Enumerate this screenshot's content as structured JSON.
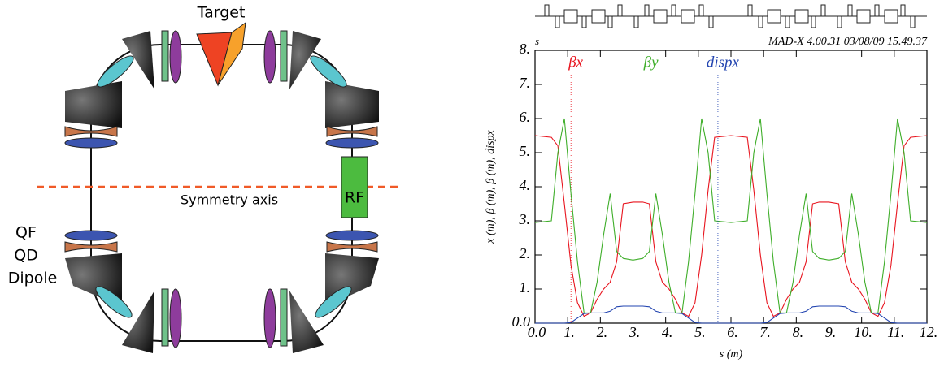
{
  "diagram": {
    "labels": {
      "target": "Target",
      "axis": "Symmetry axis",
      "rf": "RF",
      "qf": "QF",
      "qd": "QD",
      "dipole": "Dipole"
    }
  },
  "chart_data": {
    "type": "line",
    "corner_label": "s",
    "header": "MAD-X 4.00.31   03/08/09 15.49.37",
    "xlabel": "s (m)",
    "ylabel": "x (m), β (m), β (m), dispx",
    "xlim": [
      0,
      12
    ],
    "ylim": [
      0,
      8
    ],
    "xticks": [
      {
        "value": 0,
        "label": "0.0"
      },
      {
        "value": 1,
        "label": "1."
      },
      {
        "value": 2,
        "label": "2."
      },
      {
        "value": 3,
        "label": "3."
      },
      {
        "value": 4,
        "label": "4."
      },
      {
        "value": 5,
        "label": "5."
      },
      {
        "value": 6,
        "label": "6."
      },
      {
        "value": 7,
        "label": "7."
      },
      {
        "value": 8,
        "label": "8."
      },
      {
        "value": 9,
        "label": "9."
      },
      {
        "value": 10,
        "label": "10."
      },
      {
        "value": 11,
        "label": "11."
      },
      {
        "value": 12,
        "label": "12."
      }
    ],
    "yticks": [
      {
        "value": 0,
        "label": "0.0"
      },
      {
        "value": 1,
        "label": "1."
      },
      {
        "value": 2,
        "label": "2."
      },
      {
        "value": 3,
        "label": "3."
      },
      {
        "value": 4,
        "label": "4."
      },
      {
        "value": 5,
        "label": "5."
      },
      {
        "value": 6,
        "label": "6."
      },
      {
        "value": 7,
        "label": "7."
      },
      {
        "value": 8,
        "label": "8."
      }
    ],
    "x": [
      0,
      0.5,
      0.7,
      0.9,
      1.1,
      1.3,
      1.5,
      1.7,
      1.9,
      2.1,
      2.3,
      2.5,
      2.7,
      3.0,
      3.3,
      3.5,
      3.7,
      3.9,
      4.1,
      4.3,
      4.5,
      4.7,
      4.9,
      5.1,
      5.3,
      5.5,
      6.0,
      6.5,
      6.7,
      6.9,
      7.1,
      7.3,
      7.5,
      7.7,
      7.9,
      8.1,
      8.3,
      8.5,
      8.7,
      9.0,
      9.3,
      9.5,
      9.7,
      9.9,
      10.1,
      10.3,
      10.5,
      10.7,
      10.9,
      11.1,
      11.3,
      11.5,
      12
    ],
    "series": [
      {
        "name": "βx",
        "color": "#e8141e",
        "values": [
          5.5,
          5.45,
          5.2,
          3.5,
          1.7,
          0.6,
          0.2,
          0.3,
          0.7,
          1.0,
          1.2,
          1.8,
          3.5,
          3.55,
          3.55,
          3.5,
          1.8,
          1.2,
          1.0,
          0.7,
          0.3,
          0.2,
          0.6,
          2.0,
          3.9,
          5.45,
          5.5,
          5.45,
          3.9,
          2.0,
          0.6,
          0.2,
          0.3,
          0.7,
          1.0,
          1.2,
          1.8,
          3.5,
          3.55,
          3.55,
          3.5,
          1.8,
          1.2,
          1.0,
          0.7,
          0.3,
          0.2,
          0.6,
          1.7,
          3.5,
          5.2,
          5.45,
          5.5
        ]
      },
      {
        "name": "βy",
        "color": "#3fae2a",
        "values": [
          2.95,
          3.0,
          5.0,
          6.0,
          3.8,
          1.8,
          0.3,
          0.3,
          1.2,
          2.6,
          3.8,
          2.1,
          1.9,
          1.85,
          1.9,
          2.1,
          3.8,
          2.6,
          1.2,
          0.3,
          0.3,
          1.8,
          3.8,
          6.0,
          5.0,
          3.0,
          2.95,
          3.0,
          5.0,
          6.0,
          3.8,
          1.8,
          0.3,
          0.3,
          1.2,
          2.6,
          3.8,
          2.1,
          1.9,
          1.85,
          1.9,
          2.1,
          3.8,
          2.6,
          1.2,
          0.3,
          0.3,
          1.8,
          3.8,
          6.0,
          5.0,
          3.0,
          2.95
        ]
      },
      {
        "name": "dispx",
        "color": "#2244b0",
        "values": [
          0,
          0,
          0,
          0,
          0.02,
          0.15,
          0.28,
          0.3,
          0.3,
          0.3,
          0.35,
          0.48,
          0.5,
          0.5,
          0.5,
          0.48,
          0.35,
          0.3,
          0.3,
          0.3,
          0.28,
          0.15,
          0.02,
          0,
          0,
          0,
          0,
          0,
          0,
          0,
          0.02,
          0.15,
          0.28,
          0.3,
          0.3,
          0.3,
          0.35,
          0.48,
          0.5,
          0.5,
          0.5,
          0.48,
          0.35,
          0.3,
          0.3,
          0.3,
          0.28,
          0.15,
          0.02,
          0,
          0,
          0,
          0
        ]
      }
    ]
  }
}
